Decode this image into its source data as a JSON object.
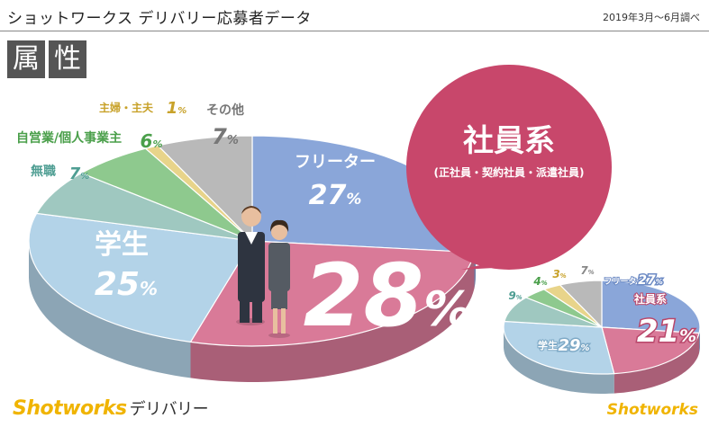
{
  "header": {
    "title": "ショットワークス デリバリー応募者データ",
    "date": "2019年3月〜6月調べ"
  },
  "section": {
    "char1": "属",
    "char2": "性"
  },
  "brand": {
    "name": "Shotworks",
    "suffix": "デリバリー"
  },
  "colors": {
    "freeter": "#8aa6d9",
    "employee": "#d97a98",
    "student": "#b3d3e8",
    "unemployed": "#9fc8c0",
    "self_employed": "#8ec98e",
    "housewife": "#e8d48a",
    "other": "#b9b9b9",
    "bubble": "#c8476b",
    "brand": "#f0b400"
  },
  "chart_data": [
    {
      "type": "pie",
      "title": "",
      "callout": {
        "label": "社員系",
        "sublabel": "(正社員・契約社員・派遣社員)"
      },
      "slices": [
        {
          "label": "フリーター",
          "value": 27,
          "display": "27",
          "color": "#8aa6d9"
        },
        {
          "label": "",
          "value": 28,
          "display": "28",
          "color": "#d97a98"
        },
        {
          "label": "学生",
          "value": 25,
          "display": "25",
          "color": "#b3d3e8"
        },
        {
          "label": "無職",
          "value": 7,
          "display": "7",
          "color": "#9fc8c0"
        },
        {
          "label": "自営業/個人事業主",
          "value": 6,
          "display": "6",
          "color": "#8ec98e"
        },
        {
          "label": "主婦・主夫",
          "value": 1,
          "display": "1",
          "color": "#e8d48a"
        },
        {
          "label": "その他",
          "value": 7,
          "display": "7",
          "color": "#b9b9b9"
        }
      ]
    },
    {
      "type": "pie",
      "title": "",
      "slices": [
        {
          "label": "フリーター",
          "value": 27,
          "display": "27",
          "color": "#8aa6d9"
        },
        {
          "label": "社員系",
          "value": 21,
          "display": "21",
          "color": "#d97a98"
        },
        {
          "label": "学生",
          "value": 29,
          "display": "29",
          "color": "#b3d3e8"
        },
        {
          "label": "",
          "value": 9,
          "display": "9",
          "color": "#9fc8c0"
        },
        {
          "label": "",
          "value": 4,
          "display": "4",
          "color": "#8ec98e"
        },
        {
          "label": "",
          "value": 3,
          "display": "3",
          "color": "#e8d48a"
        },
        {
          "label": "",
          "value": 7,
          "display": "7",
          "color": "#b9b9b9"
        }
      ]
    }
  ]
}
